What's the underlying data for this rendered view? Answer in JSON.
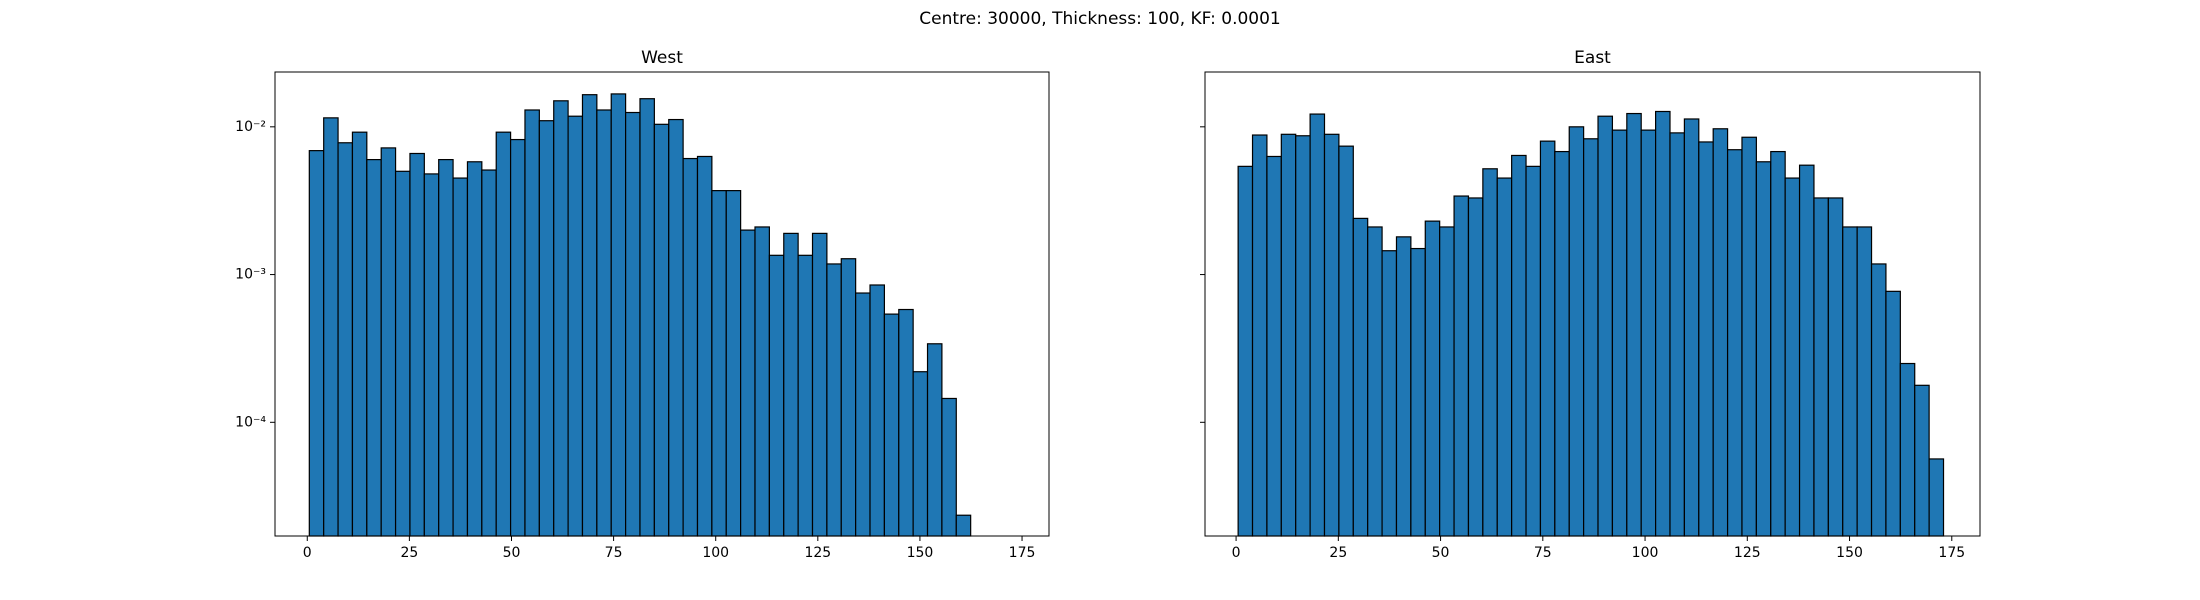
{
  "title": "Centre: 30000, Thickness: 100, KF: 0.0001",
  "chart_data": [
    {
      "type": "histogram",
      "title": "West",
      "color": "#1f77b4",
      "edgecolor": "#000000",
      "log_y": true,
      "bins": [
        0.5,
        4.02,
        7.54,
        11.06,
        14.58,
        18.1,
        21.62,
        25.14,
        28.66,
        32.18,
        35.7,
        39.22,
        42.74,
        46.26,
        49.78,
        53.3,
        56.82,
        60.34,
        63.86,
        67.38,
        70.9,
        74.42,
        77.94,
        81.46,
        84.98,
        88.5,
        92.02,
        95.54,
        99.06,
        102.58,
        106.1,
        109.62,
        113.14,
        116.66,
        120.18,
        123.7,
        127.22,
        130.74,
        134.26,
        137.78,
        141.3,
        144.82,
        148.34,
        151.86,
        155.38,
        158.9,
        162.42
      ],
      "values": [
        0.0069,
        0.0115,
        0.0078,
        0.0092,
        0.006,
        0.0072,
        0.005,
        0.0066,
        0.0048,
        0.006,
        0.0045,
        0.0058,
        0.0051,
        0.0092,
        0.0082,
        0.013,
        0.011,
        0.015,
        0.0118,
        0.0165,
        0.013,
        0.0167,
        0.0125,
        0.0155,
        0.0104,
        0.0112,
        0.0061,
        0.0063,
        0.0037,
        0.0037,
        0.002,
        0.0021,
        0.00135,
        0.0019,
        0.00135,
        0.0019,
        0.00118,
        0.00128,
        0.00075,
        0.00085,
        0.00054,
        0.00058,
        0.00022,
        0.00034,
        0.000145,
        2.35e-05
      ],
      "xlim": [
        -7.9,
        181.6
      ],
      "xticks": [
        0,
        25,
        50,
        75,
        100,
        125,
        150,
        175
      ],
      "ylim": [
        1.7e-05,
        0.0235
      ],
      "yticks": [
        {
          "value": 0.01,
          "label": "10⁻²"
        },
        {
          "value": 0.001,
          "label": "10⁻³"
        },
        {
          "value": 0.0001,
          "label": "10⁻⁴"
        }
      ]
    },
    {
      "type": "histogram",
      "title": "East",
      "color": "#1f77b4",
      "edgecolor": "#000000",
      "log_y": true,
      "bins": [
        0.5,
        4.02,
        7.54,
        11.06,
        14.58,
        18.1,
        21.62,
        25.14,
        28.66,
        32.18,
        35.7,
        39.22,
        42.74,
        46.26,
        49.78,
        53.3,
        56.82,
        60.34,
        63.86,
        67.38,
        70.9,
        74.42,
        77.94,
        81.46,
        84.98,
        88.5,
        92.02,
        95.54,
        99.06,
        102.58,
        106.1,
        109.62,
        113.14,
        116.66,
        120.18,
        123.7,
        127.22,
        130.74,
        134.26,
        137.78,
        141.3,
        144.82,
        148.34,
        151.86,
        155.38,
        158.9,
        162.42,
        165.94,
        169.46,
        172.98
      ],
      "values": [
        0.0054,
        0.0088,
        0.0063,
        0.0089,
        0.0087,
        0.0122,
        0.0089,
        0.0074,
        0.0024,
        0.0021,
        0.00145,
        0.0018,
        0.0015,
        0.0023,
        0.0021,
        0.0034,
        0.0033,
        0.0052,
        0.0045,
        0.0064,
        0.0054,
        0.008,
        0.0068,
        0.01,
        0.0083,
        0.0118,
        0.0095,
        0.0123,
        0.0095,
        0.0127,
        0.0091,
        0.0113,
        0.0079,
        0.0097,
        0.007,
        0.0085,
        0.0058,
        0.0068,
        0.0045,
        0.0055,
        0.0033,
        0.0033,
        0.0021,
        0.0021,
        0.00118,
        0.00077,
        0.00025,
        0.000178,
        5.65e-05
      ],
      "xlim": [
        -7.6,
        181.9
      ],
      "xticks": [
        0,
        25,
        50,
        75,
        100,
        125,
        150,
        175
      ],
      "ylim": [
        1.7e-05,
        0.0235
      ]
    }
  ]
}
